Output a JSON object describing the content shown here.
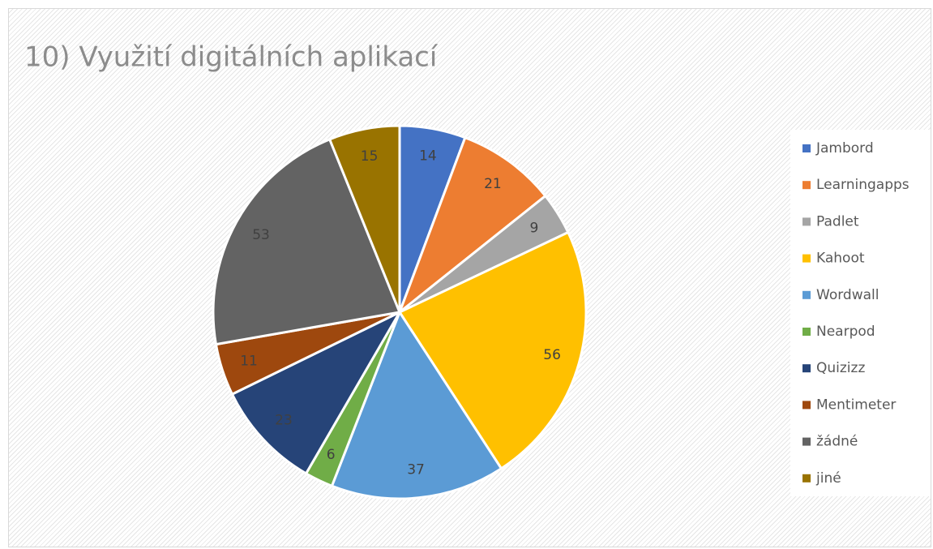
{
  "chart_data": {
    "type": "pie",
    "title": "10) Využití digitálních aplikací",
    "categories": [
      "Jambord",
      "Learningapps",
      "Padlet",
      "Kahoot",
      "Wordwall",
      "Nearpod",
      "Quizizz",
      "Mentimeter",
      "žádné",
      "jiné"
    ],
    "values": [
      14,
      21,
      9,
      56,
      37,
      6,
      23,
      11,
      53,
      15
    ],
    "colors": [
      "#4472c4",
      "#ed7d31",
      "#a5a5a5",
      "#ffc000",
      "#5b9bd5",
      "#70ad47",
      "#264478",
      "#9e480e",
      "#636363",
      "#997300"
    ],
    "legend": "right"
  }
}
